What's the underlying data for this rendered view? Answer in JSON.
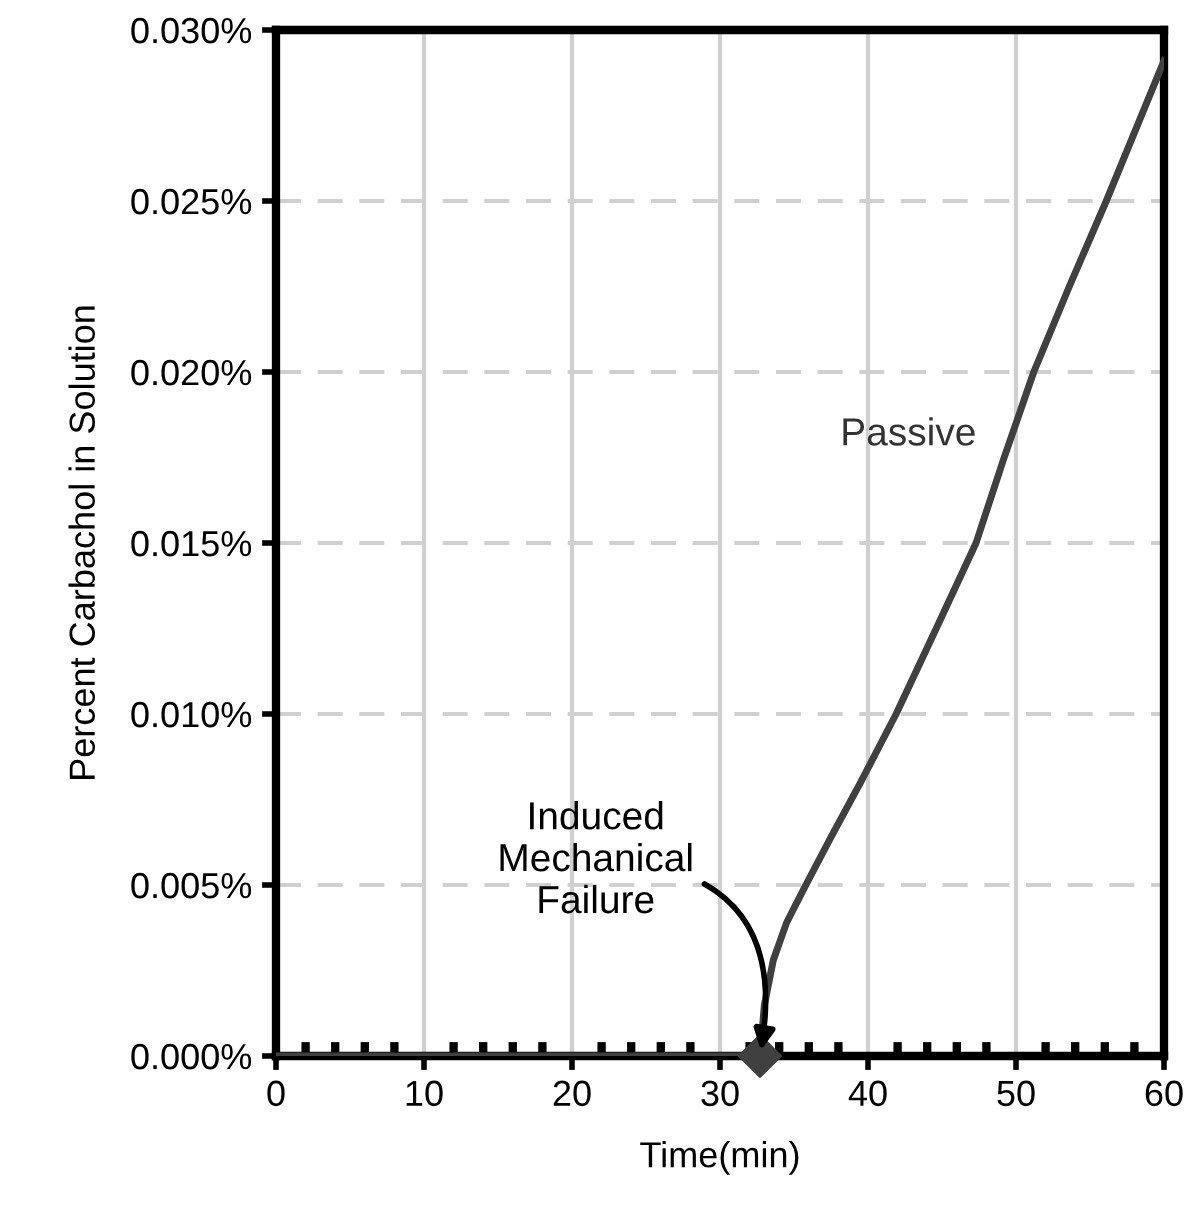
{
  "chart_data": {
    "type": "line",
    "xlabel": "Time(min)",
    "ylabel": "Percent Carbachol in Solution",
    "xlim": [
      0,
      60
    ],
    "xticks": [
      0,
      10,
      20,
      30,
      40,
      50,
      60
    ],
    "ylim": [
      0,
      0.03
    ],
    "yticks": [
      {
        "value": 0,
        "label": "0.000%"
      },
      {
        "value": 0.005,
        "label": "0.005%"
      },
      {
        "value": 0.01,
        "label": "0.010%"
      },
      {
        "value": 0.015,
        "label": "0.015%"
      },
      {
        "value": 0.02,
        "label": "0.020%"
      },
      {
        "value": 0.025,
        "label": "0.025%"
      },
      {
        "value": 0.03,
        "label": "0.030%"
      }
    ],
    "grid": true,
    "legend": false,
    "line_style": "solid",
    "series": [
      {
        "name": "Passive",
        "color": "#404040",
        "marker": "none",
        "x": [
          0,
          32.7,
          33.0,
          33.6,
          34.5,
          35.8,
          37.5,
          39.5,
          41.9,
          44.5,
          47.3,
          49.2,
          51.2,
          53.6,
          56.1,
          58.0,
          60
        ],
        "values": [
          0,
          0,
          0.0015,
          0.0028,
          0.0039,
          0.005,
          0.0064,
          0.008,
          0.01,
          0.0124,
          0.015,
          0.0175,
          0.02,
          0.0225,
          0.025,
          0.027,
          0.0291
        ]
      },
      {
        "type": "scatter",
        "color": "#404040",
        "marker": "diamond",
        "x": [
          32.7
        ],
        "values": [
          0
        ]
      }
    ],
    "annotations": [
      {
        "text": "Induced\nMechanical\nFailure",
        "x": 32.7,
        "y": 0
      }
    ]
  }
}
